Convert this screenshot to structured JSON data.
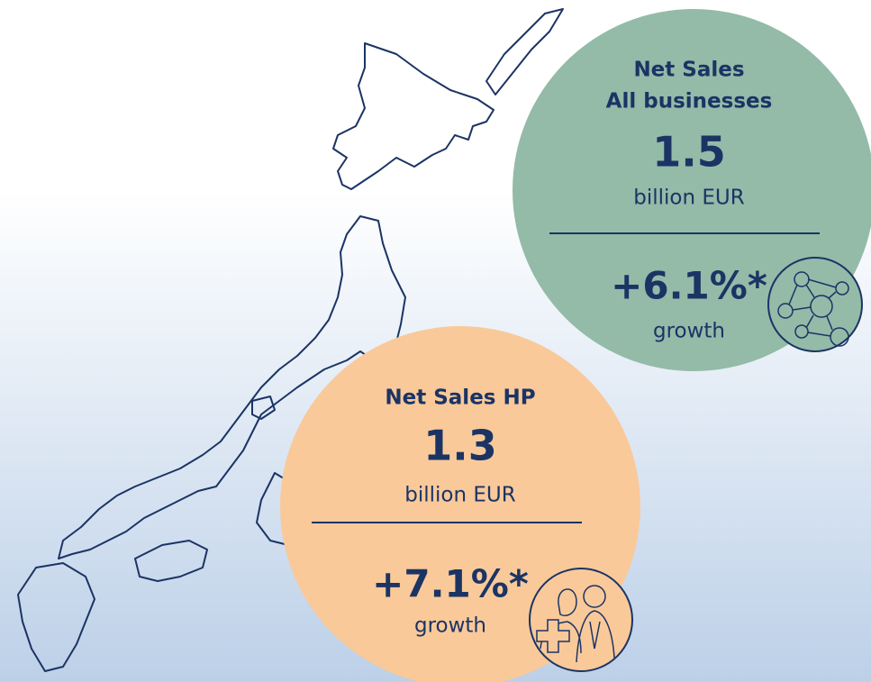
{
  "green_card": {
    "title_line1": "Net Sales",
    "title_line2": "All businesses",
    "amount": "1.5",
    "unit": "billion EUR",
    "growth_value": "+6.1%*",
    "growth_label": "growth"
  },
  "orange_card": {
    "title": "Net Sales HP",
    "amount": "1.3",
    "unit": "billion EUR",
    "growth_value": "+7.1%*",
    "growth_label": "growth"
  }
}
